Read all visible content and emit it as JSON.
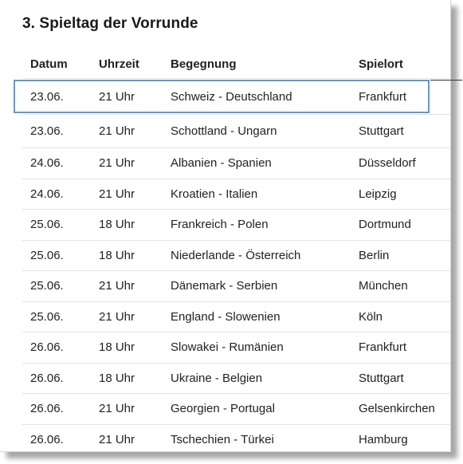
{
  "title": "3. Spieltag der Vorrunde",
  "columns": {
    "date": "Datum",
    "time": "Uhrzeit",
    "match": "Begegnung",
    "venue": "Spielort"
  },
  "rows": [
    {
      "date": "23.06.",
      "time": "21 Uhr",
      "match": "Schweiz - Deutschland",
      "venue": "Frankfurt"
    },
    {
      "date": "23.06.",
      "time": "21 Uhr",
      "match": "Schottland - Ungarn",
      "venue": "Stuttgart"
    },
    {
      "date": "24.06.",
      "time": "21 Uhr",
      "match": "Albanien - Spanien",
      "venue": "Düsseldorf"
    },
    {
      "date": "24.06.",
      "time": "21 Uhr",
      "match": "Kroatien - Italien",
      "venue": "Leipzig"
    },
    {
      "date": "25.06.",
      "time": "18 Uhr",
      "match": "Frankreich - Polen",
      "venue": "Dortmund"
    },
    {
      "date": "25.06.",
      "time": "18 Uhr",
      "match": "Niederlande - Österreich",
      "venue": "Berlin"
    },
    {
      "date": "25.06.",
      "time": "21 Uhr",
      "match": "Dänemark - Serbien",
      "venue": "München"
    },
    {
      "date": "25.06.",
      "time": "21 Uhr",
      "match": "England - Slowenien",
      "venue": "Köln"
    },
    {
      "date": "26.06.",
      "time": "18 Uhr",
      "match": "Slowakei - Rumänien",
      "venue": "Frankfurt"
    },
    {
      "date": "26.06.",
      "time": "18 Uhr",
      "match": "Ukraine - Belgien",
      "venue": "Stuttgart"
    },
    {
      "date": "26.06.",
      "time": "21 Uhr",
      "match": "Georgien - Portugal",
      "venue": "Gelsenkirchen"
    },
    {
      "date": "26.06.",
      "time": "21 Uhr",
      "match": "Tschechien - Türkei",
      "venue": "Hamburg"
    }
  ],
  "colors": {
    "highlight_border": "#5b9bd5",
    "row_divider": "#e4e4e4"
  }
}
